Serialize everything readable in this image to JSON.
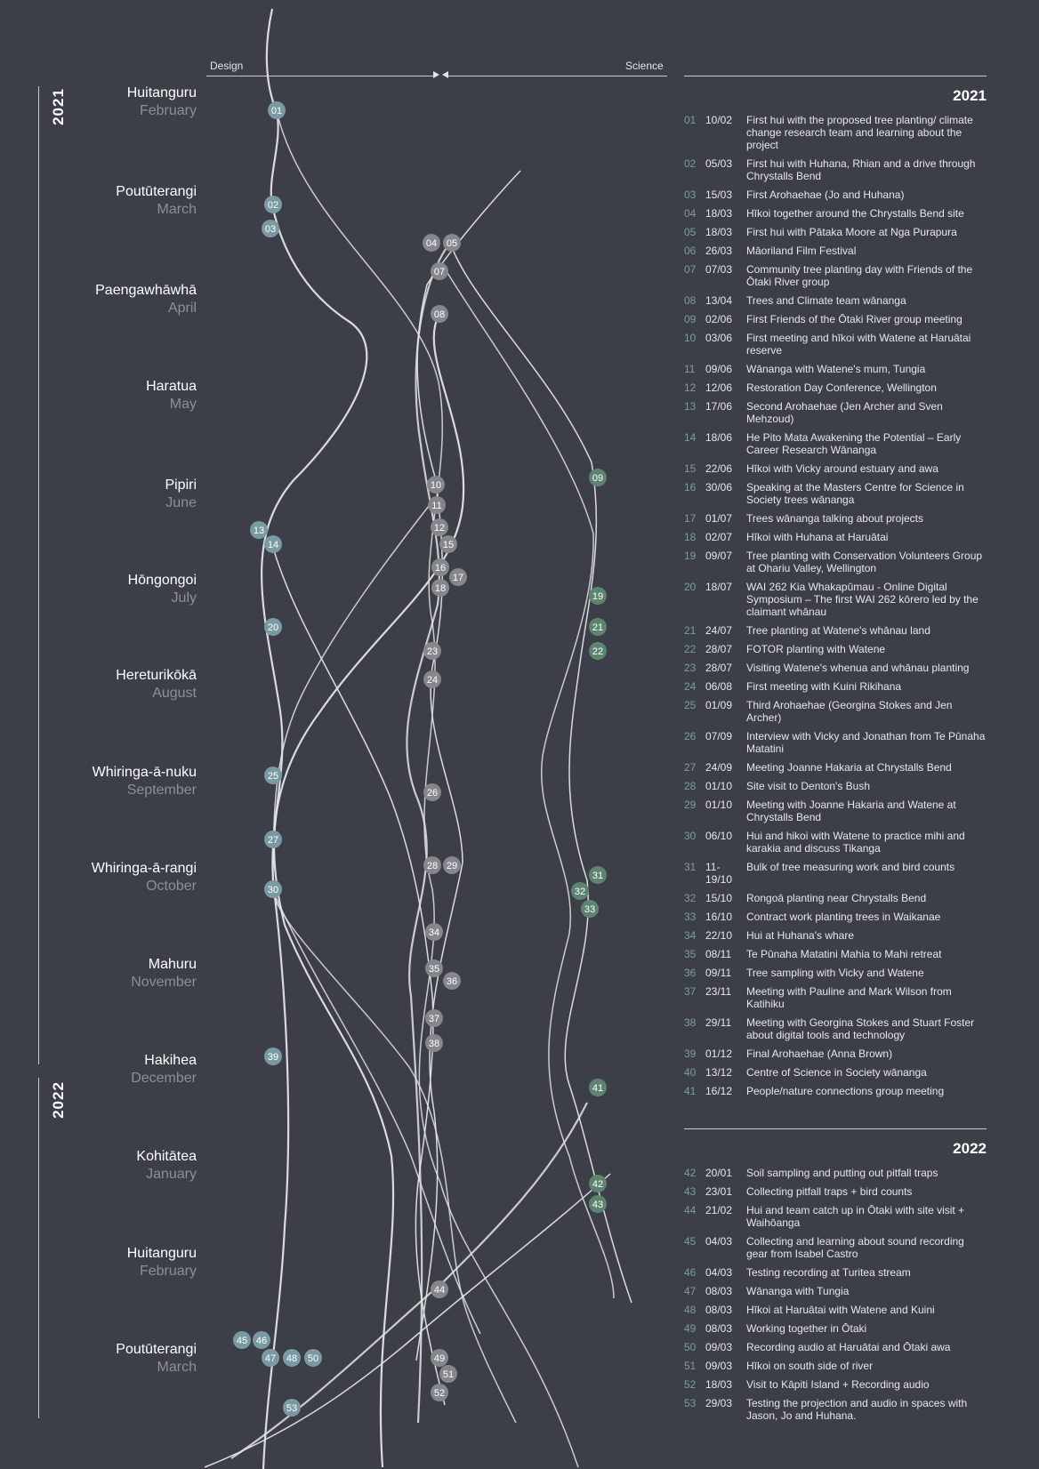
{
  "axis": {
    "design_label": "Design",
    "science_label": "Science"
  },
  "years": {
    "y2021": "2021",
    "y2022": "2022"
  },
  "months": [
    {
      "maori": "Huitanguru",
      "english": "February"
    },
    {
      "maori": "Poutūterangi",
      "english": "March"
    },
    {
      "maori": "Paengawhāwhā",
      "english": "April"
    },
    {
      "maori": "Haratua",
      "english": "May"
    },
    {
      "maori": "Pipiri",
      "english": "June"
    },
    {
      "maori": "Hōngongoi",
      "english": "July"
    },
    {
      "maori": "Hereturikōkā",
      "english": "August"
    },
    {
      "maori": "Whiringa-ā-nuku",
      "english": "September"
    },
    {
      "maori": "Whiringa-ā-rangi",
      "english": "October"
    },
    {
      "maori": "Mahuru",
      "english": "November"
    },
    {
      "maori": "Hakihea",
      "english": "December"
    },
    {
      "maori": "Kohitātea",
      "english": "January"
    },
    {
      "maori": "Huitanguru",
      "english": "February"
    },
    {
      "maori": "Poutūterangi",
      "english": "March"
    }
  ],
  "colors": {
    "background": "#3d3f48",
    "design": "#7a9aa3",
    "mid": "#85878c",
    "science": "#5c8570",
    "line": "#e4e4e6"
  },
  "nodes": [
    {
      "id": "01",
      "group": "design"
    },
    {
      "id": "02",
      "group": "design"
    },
    {
      "id": "03",
      "group": "design"
    },
    {
      "id": "04",
      "group": "mid"
    },
    {
      "id": "05",
      "group": "mid"
    },
    {
      "id": "07",
      "group": "mid"
    },
    {
      "id": "08",
      "group": "mid"
    },
    {
      "id": "09",
      "group": "science"
    },
    {
      "id": "10",
      "group": "mid"
    },
    {
      "id": "11",
      "group": "mid"
    },
    {
      "id": "12",
      "group": "mid"
    },
    {
      "id": "13",
      "group": "design"
    },
    {
      "id": "14",
      "group": "design"
    },
    {
      "id": "15",
      "group": "mid"
    },
    {
      "id": "16",
      "group": "mid"
    },
    {
      "id": "17",
      "group": "mid"
    },
    {
      "id": "18",
      "group": "mid"
    },
    {
      "id": "19",
      "group": "science"
    },
    {
      "id": "20",
      "group": "design"
    },
    {
      "id": "21",
      "group": "science"
    },
    {
      "id": "22",
      "group": "science"
    },
    {
      "id": "23",
      "group": "mid"
    },
    {
      "id": "24",
      "group": "mid"
    },
    {
      "id": "25",
      "group": "design"
    },
    {
      "id": "26",
      "group": "mid"
    },
    {
      "id": "27",
      "group": "design"
    },
    {
      "id": "28",
      "group": "mid"
    },
    {
      "id": "29",
      "group": "mid"
    },
    {
      "id": "30",
      "group": "design"
    },
    {
      "id": "31",
      "group": "science"
    },
    {
      "id": "32",
      "group": "science"
    },
    {
      "id": "33",
      "group": "science"
    },
    {
      "id": "34",
      "group": "mid"
    },
    {
      "id": "35",
      "group": "mid"
    },
    {
      "id": "36",
      "group": "mid"
    },
    {
      "id": "37",
      "group": "mid"
    },
    {
      "id": "38",
      "group": "mid"
    },
    {
      "id": "39",
      "group": "design"
    },
    {
      "id": "41",
      "group": "science"
    },
    {
      "id": "42",
      "group": "science"
    },
    {
      "id": "43",
      "group": "science"
    },
    {
      "id": "44",
      "group": "mid"
    },
    {
      "id": "45",
      "group": "design"
    },
    {
      "id": "46",
      "group": "design"
    },
    {
      "id": "47",
      "group": "design"
    },
    {
      "id": "48",
      "group": "design"
    },
    {
      "id": "49",
      "group": "mid"
    },
    {
      "id": "50",
      "group": "design"
    },
    {
      "id": "51",
      "group": "mid"
    },
    {
      "id": "52",
      "group": "mid"
    },
    {
      "id": "53",
      "group": "design"
    }
  ],
  "legend": {
    "y2021": {
      "year": "2021",
      "items": [
        {
          "n": "01",
          "d": "10/02",
          "t": "First hui with the proposed tree planting/ climate change research team and learning about the project"
        },
        {
          "n": "02",
          "d": "05/03",
          "t": "First hui with Huhana, Rhian and a drive through Chrystalls Bend"
        },
        {
          "n": "03",
          "d": "15/03",
          "t": "First Arohaehae (Jo and Huhana)"
        },
        {
          "n": "04",
          "d": "18/03",
          "t": "Hīkoi together around the Chrystalls Bend site"
        },
        {
          "n": "05",
          "d": "18/03",
          "t": "First hui with Pātaka Moore at Nga Purapura"
        },
        {
          "n": "06",
          "d": "26/03",
          "t": "Māoriland Film Festival"
        },
        {
          "n": "07",
          "d": "07/03",
          "t": "Community tree planting day with Friends of the Ōtaki River group"
        },
        {
          "n": "08",
          "d": "13/04",
          "t": "Trees and Climate team wānanga"
        },
        {
          "n": "09",
          "d": "02/06",
          "t": "First Friends of the Ōtaki River group meeting"
        },
        {
          "n": "10",
          "d": "03/06",
          "t": "First meeting and hīkoi with Watene at Haruātai reserve"
        },
        {
          "n": "11",
          "d": "09/06",
          "t": "Wānanga with Watene's mum, Tungia"
        },
        {
          "n": "12",
          "d": "12/06",
          "t": "Restoration Day Conference, Wellington"
        },
        {
          "n": "13",
          "d": "17/06",
          "t": "Second Arohaehae (Jen Archer and Sven Mehzoud)"
        },
        {
          "n": "14",
          "d": "18/06",
          "t": "He Pito Mata Awakening the Potential – Early Career Research Wānanga"
        },
        {
          "n": "15",
          "d": "22/06",
          "t": "Hīkoi with Vicky around estuary and awa"
        },
        {
          "n": "16",
          "d": "30/06",
          "t": "Speaking at the Masters Centre for Science in Society trees wānanga"
        },
        {
          "n": "17",
          "d": "01/07",
          "t": "Trees wānanga talking about projects"
        },
        {
          "n": "18",
          "d": "02/07",
          "t": "Hīkoi with Huhana at Haruātai"
        },
        {
          "n": "19",
          "d": "09/07",
          "t": "Tree planting with Conservation Volunteers Group at Ohariu Valley, Wellington"
        },
        {
          "n": "20",
          "d": "18/07",
          "t": "WAI 262 Kia Whakapūmau - Online Digital Symposium – The first WAI 262 kōrero led by the claimant whānau"
        },
        {
          "n": "21",
          "d": "24/07",
          "t": "Tree planting at Watene's whānau land"
        },
        {
          "n": "22",
          "d": "28/07",
          "t": "FOTOR planting with Watene"
        },
        {
          "n": "23",
          "d": "28/07",
          "t": "Visiting Watene's whenua and whānau planting"
        },
        {
          "n": "24",
          "d": "06/08",
          "t": "First meeting with Kuini Rikihana"
        },
        {
          "n": "25",
          "d": "01/09",
          "t": "Third Arohaehae (Georgina Stokes and Jen Archer)"
        },
        {
          "n": "26",
          "d": "07/09",
          "t": "Interview with Vicky and Jonathan from Te Pūnaha Matatini"
        },
        {
          "n": "27",
          "d": "24/09",
          "t": "Meeting Joanne Hakaria at Chrystalls Bend"
        },
        {
          "n": "28",
          "d": "01/10",
          "t": "Site visit to Denton's Bush"
        },
        {
          "n": "29",
          "d": "01/10",
          "t": "Meeting with Joanne Hakaria and Watene at Chrystalls Bend"
        },
        {
          "n": "30",
          "d": "06/10",
          "t": "Hui and hikoi with Watene to practice mihi and karakia and discuss Tikanga"
        },
        {
          "n": "31",
          "d": "11-19/10",
          "t": "Bulk of tree measuring work and bird counts"
        },
        {
          "n": "32",
          "d": "15/10",
          "t": "Rongoā planting near Chrystalls Bend"
        },
        {
          "n": "33",
          "d": "16/10",
          "t": "Contract work planting trees in Waikanae"
        },
        {
          "n": "34",
          "d": "22/10",
          "t": "Hui at Huhana's whare"
        },
        {
          "n": "35",
          "d": "08/11",
          "t": "Te Pūnaha Matatini Mahia to Mahi retreat"
        },
        {
          "n": "36",
          "d": "09/11",
          "t": "Tree sampling with Vicky and Watene"
        },
        {
          "n": "37",
          "d": "23/11",
          "t": "Meeting with Pauline and Mark Wilson from Katihiku"
        },
        {
          "n": "38",
          "d": "29/11",
          "t": "Meeting with Georgina Stokes and Stuart Foster about digital tools and technology"
        },
        {
          "n": "39",
          "d": "01/12",
          "t": "Final Arohaehae (Anna Brown)"
        },
        {
          "n": "40",
          "d": "13/12",
          "t": "Centre of Science in Society wānanga"
        },
        {
          "n": "41",
          "d": "16/12",
          "t": "People/nature connections group meeting"
        }
      ]
    },
    "y2022": {
      "year": "2022",
      "items": [
        {
          "n": "42",
          "d": "20/01",
          "t": "Soil sampling and putting out pitfall traps"
        },
        {
          "n": "43",
          "d": "23/01",
          "t": "Collecting pitfall traps + bird counts"
        },
        {
          "n": "44",
          "d": "21/02",
          "t": "Hui and team catch up in Ōtaki with site visit + Waihōanga"
        },
        {
          "n": "45",
          "d": "04/03",
          "t": "Collecting and learning about sound recording gear from Isabel Castro"
        },
        {
          "n": "46",
          "d": "04/03",
          "t": "Testing recording at Turitea stream"
        },
        {
          "n": "47",
          "d": "08/03",
          "t": "Wānanga with Tungia"
        },
        {
          "n": "48",
          "d": "08/03",
          "t": "Hīkoi at Haruātai  with Watene and Kuini"
        },
        {
          "n": "49",
          "d": "08/03",
          "t": "Working together in Ōtaki"
        },
        {
          "n": "50",
          "d": "09/03",
          "t": "Recording audio at Haruātai  and Ōtaki awa"
        },
        {
          "n": "51",
          "d": "09/03",
          "t": "Hīkoi on south side of river"
        },
        {
          "n": "52",
          "d": "18/03",
          "t": "Visit to Kāpiti Island + Recording audio"
        },
        {
          "n": "53",
          "d": "29/03",
          "t": "Testing the projection and audio in spaces with Jason, Jo and Huhana."
        }
      ]
    }
  }
}
